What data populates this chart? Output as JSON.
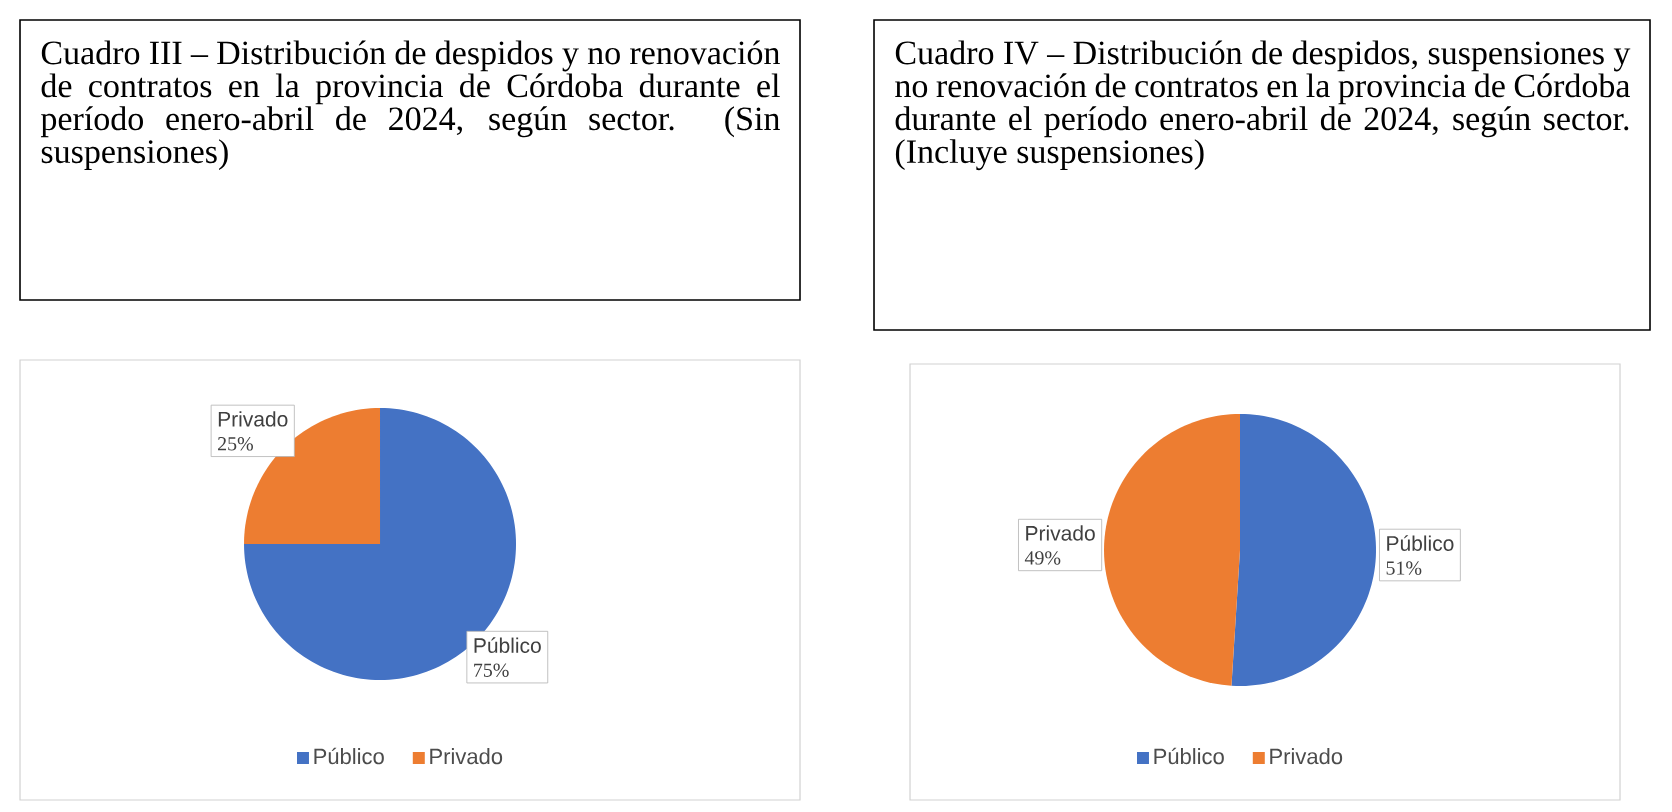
{
  "chart_data": [
    {
      "type": "pie",
      "title": "Cuadro III – Distribución de despidos y no renovación de contratos en la provincia de Córdoba durante el período enero-abril de 2024, según sector. (Sin suspensiones)",
      "categories": [
        "Público",
        "Privado"
      ],
      "values": [
        75,
        25
      ],
      "colors": [
        "#4472c4",
        "#ed7d31"
      ],
      "value_labels": [
        "75%",
        "25%"
      ],
      "legend": "bottom"
    },
    {
      "type": "pie",
      "title": "Cuadro IV – Distribución de despidos, suspensiones y no renovación de contratos en la provincia de Córdoba durante el período enero-abril de 2024, según sector. (Incluye suspensiones)",
      "categories": [
        "Público",
        "Privado"
      ],
      "values": [
        51,
        49
      ],
      "colors": [
        "#4472c4",
        "#ed7d31"
      ],
      "value_labels": [
        "51%",
        "49%"
      ],
      "legend": "bottom"
    }
  ]
}
